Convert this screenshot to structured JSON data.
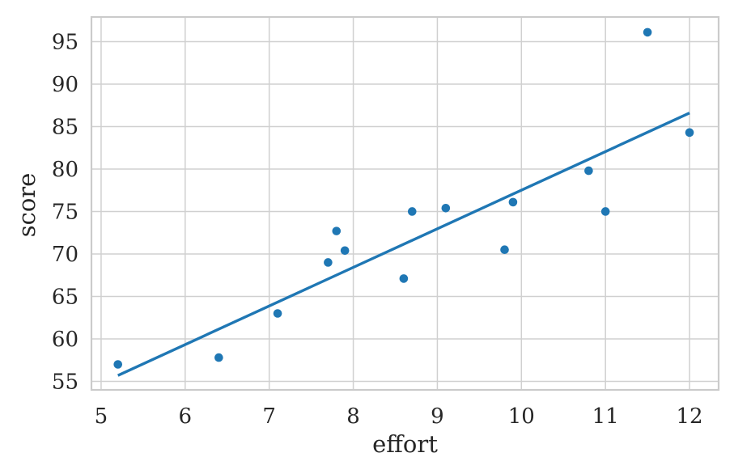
{
  "chart_data": {
    "type": "scatter",
    "title": "",
    "xlabel": "effort",
    "ylabel": "score",
    "xlim": [
      4.885,
      12.346
    ],
    "ylim": [
      54.0,
      97.9
    ],
    "x_ticks": [
      5,
      6,
      7,
      8,
      9,
      10,
      11,
      12
    ],
    "y_ticks": [
      55,
      60,
      65,
      70,
      75,
      80,
      85,
      90,
      95
    ],
    "grid": true,
    "legend": null,
    "series": [
      {
        "name": "observations",
        "type": "scatter",
        "points": [
          [
            5.2,
            57.0
          ],
          [
            6.4,
            57.8
          ],
          [
            7.1,
            63.0
          ],
          [
            7.7,
            69.0
          ],
          [
            7.8,
            72.7
          ],
          [
            7.9,
            70.4
          ],
          [
            8.6,
            67.1
          ],
          [
            8.7,
            75.0
          ],
          [
            9.1,
            75.4
          ],
          [
            9.8,
            70.5
          ],
          [
            9.9,
            76.1
          ],
          [
            10.8,
            79.8
          ],
          [
            11.0,
            75.0
          ],
          [
            11.5,
            96.1
          ],
          [
            12.0,
            84.3
          ]
        ]
      },
      {
        "name": "regression-line",
        "type": "line",
        "points": [
          [
            5.2,
            55.7
          ],
          [
            12.0,
            86.6
          ]
        ]
      }
    ],
    "colors": {
      "accent": "#1f77b4",
      "grid": "#d0d0d0",
      "spine": "#cbcbcb",
      "text": "#262626",
      "background": "#ffffff"
    }
  }
}
